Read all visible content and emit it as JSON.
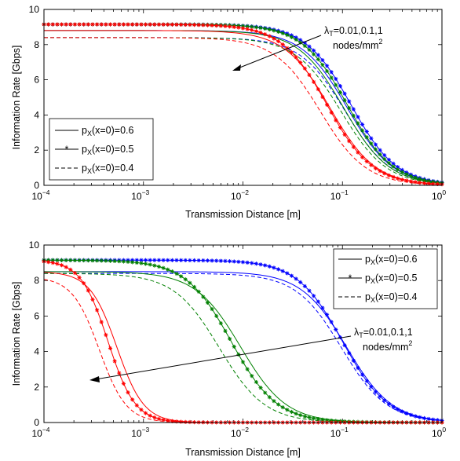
{
  "colors": {
    "lambda_0_01": "#0000ff",
    "lambda_0_1": "#008000",
    "lambda_1": "#ff0000"
  },
  "chart_data": [
    {
      "type": "line",
      "xscale": "log",
      "xlim": [
        0.0001,
        1
      ],
      "ylim": [
        0,
        10
      ],
      "xlabel": "Transmission Distance [m]",
      "ylabel": "Information Rate [Gbps]",
      "xticks": [
        {
          "base": "10",
          "exp": "−4",
          "value": 0.0001
        },
        {
          "base": "10",
          "exp": "−3",
          "value": 0.001
        },
        {
          "base": "10",
          "exp": "−2",
          "value": 0.01
        },
        {
          "base": "10",
          "exp": "−1",
          "value": 0.1
        },
        {
          "base": "10",
          "exp": "0",
          "value": 1
        }
      ],
      "yticks": [
        "0",
        "2",
        "4",
        "6",
        "8",
        "10"
      ],
      "legend": {
        "position": "bottom-left",
        "entries": [
          {
            "prefix": "p",
            "sub": "X",
            "suffix": "(x=0)=0.6",
            "style": "solid"
          },
          {
            "prefix": "p",
            "sub": "X",
            "suffix": "(x=0)=0.5",
            "style": "solid-star"
          },
          {
            "prefix": "p",
            "sub": "X",
            "suffix": "(x=0)=0.4",
            "style": "dashed"
          }
        ]
      },
      "annotation": {
        "line1_lambda": "λ",
        "line1_sub": "T",
        "line1_rest": "=0.01,0.1,1",
        "line2": "nodes/mm",
        "line2_sup": "2"
      },
      "series": [
        {
          "lambda": 0.01,
          "p": 0.6,
          "style": "solid",
          "color": "#0000ff",
          "max": 8.8,
          "x50": 0.112,
          "steep": 1.9
        },
        {
          "lambda": 0.01,
          "p": 0.5,
          "style": "solid-star",
          "color": "#0000ff",
          "max": 9.15,
          "x50": 0.122,
          "steep": 1.9
        },
        {
          "lambda": 0.01,
          "p": 0.4,
          "style": "dashed",
          "color": "#0000ff",
          "max": 8.4,
          "x50": 0.107,
          "steep": 1.9
        },
        {
          "lambda": 0.1,
          "p": 0.6,
          "style": "solid",
          "color": "#008000",
          "max": 8.8,
          "x50": 0.103,
          "steep": 1.9
        },
        {
          "lambda": 0.1,
          "p": 0.5,
          "style": "solid-star",
          "color": "#008000",
          "max": 9.15,
          "x50": 0.112,
          "steep": 1.9
        },
        {
          "lambda": 0.1,
          "p": 0.4,
          "style": "dashed",
          "color": "#008000",
          "max": 8.4,
          "x50": 0.097,
          "steep": 1.9
        },
        {
          "lambda": 1,
          "p": 0.6,
          "style": "solid",
          "color": "#ff0000",
          "max": 8.8,
          "x50": 0.075,
          "steep": 1.9
        },
        {
          "lambda": 1,
          "p": 0.5,
          "style": "solid-star",
          "color": "#ff0000",
          "max": 9.15,
          "x50": 0.07,
          "steep": 1.9
        },
        {
          "lambda": 1,
          "p": 0.4,
          "style": "dashed",
          "color": "#ff0000",
          "max": 8.4,
          "x50": 0.06,
          "steep": 1.9
        }
      ]
    },
    {
      "type": "line",
      "xscale": "log",
      "xlim": [
        0.0001,
        1
      ],
      "ylim": [
        0,
        10
      ],
      "xlabel": "Transmission Distance [m]",
      "ylabel": "Information Rate [Gbps]",
      "xticks": [
        {
          "base": "10",
          "exp": "−4",
          "value": 0.0001
        },
        {
          "base": "10",
          "exp": "−3",
          "value": 0.001
        },
        {
          "base": "10",
          "exp": "−2",
          "value": 0.01
        },
        {
          "base": "10",
          "exp": "−1",
          "value": 0.1
        },
        {
          "base": "10",
          "exp": "0",
          "value": 1
        }
      ],
      "yticks": [
        "0",
        "2",
        "4",
        "6",
        "8",
        "10"
      ],
      "legend": {
        "position": "top-right",
        "entries": [
          {
            "prefix": "p",
            "sub": "X",
            "suffix": "(x=0)=0.6",
            "style": "solid"
          },
          {
            "prefix": "p",
            "sub": "X",
            "suffix": "(x=0)=0.5",
            "style": "solid-star"
          },
          {
            "prefix": "p",
            "sub": "X",
            "suffix": "(x=0)=0.4",
            "style": "dashed"
          }
        ]
      },
      "annotation": {
        "line1_lambda": "λ",
        "line1_sub": "T",
        "line1_rest": "=0.01,0.1,1",
        "line2": "nodes/mm",
        "line2_sup": "2"
      },
      "series": [
        {
          "lambda": 0.01,
          "p": 0.6,
          "style": "solid",
          "color": "#0000ff",
          "max": 8.5,
          "x50": 0.11,
          "steep": 1.9
        },
        {
          "lambda": 0.01,
          "p": 0.5,
          "style": "solid-star",
          "color": "#0000ff",
          "max": 9.15,
          "x50": 0.1,
          "steep": 1.9
        },
        {
          "lambda": 0.01,
          "p": 0.4,
          "style": "dashed",
          "color": "#0000ff",
          "max": 8.4,
          "x50": 0.098,
          "steep": 1.9
        },
        {
          "lambda": 0.1,
          "p": 0.6,
          "style": "solid",
          "color": "#008000",
          "max": 8.5,
          "x50": 0.0095,
          "steep": 1.9
        },
        {
          "lambda": 0.1,
          "p": 0.5,
          "style": "solid-star",
          "color": "#008000",
          "max": 9.15,
          "x50": 0.0076,
          "steep": 1.9
        },
        {
          "lambda": 0.1,
          "p": 0.4,
          "style": "dashed",
          "color": "#008000",
          "max": 8.4,
          "x50": 0.0058,
          "steep": 1.9
        },
        {
          "lambda": 1,
          "p": 0.6,
          "style": "solid",
          "color": "#ff0000",
          "max": 8.5,
          "x50": 0.00054,
          "steep": 3.2
        },
        {
          "lambda": 1,
          "p": 0.5,
          "style": "solid-star",
          "color": "#ff0000",
          "max": 9.15,
          "x50": 0.00044,
          "steep": 3.2
        },
        {
          "lambda": 1,
          "p": 0.4,
          "style": "dashed",
          "color": "#ff0000",
          "max": 8.2,
          "x50": 0.00036,
          "steep": 3.2
        }
      ]
    }
  ]
}
